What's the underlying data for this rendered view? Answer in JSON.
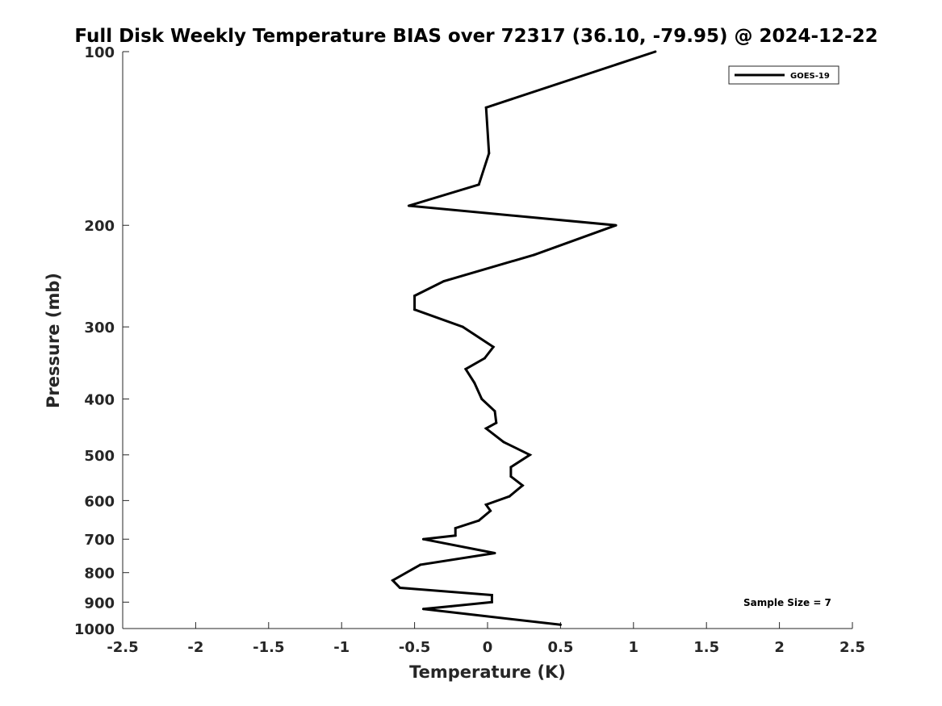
{
  "chart_data": {
    "type": "line",
    "title": "Full Disk Weekly Temperature BIAS over 72317 (36.10, -79.95) @ 2024-12-22",
    "xlabel": "Temperature (K)",
    "ylabel": "Pressure (mb)",
    "xlim": [
      -2.5,
      2.5
    ],
    "ylim": [
      1000,
      100
    ],
    "yscale": "log",
    "y_reversed": true,
    "grid": false,
    "legend_position": "top-right",
    "x_ticks": [
      -2.5,
      -2,
      -1.5,
      -1,
      -0.5,
      0,
      0.5,
      1,
      1.5,
      2,
      2.5
    ],
    "x_tick_labels": [
      "-2.5",
      "-2",
      "-1.5",
      "-1",
      "-0.5",
      "0",
      "0.5",
      "1",
      "1.5",
      "2",
      "2.5"
    ],
    "y_ticks": [
      100,
      200,
      300,
      400,
      500,
      600,
      700,
      800,
      900,
      1000
    ],
    "y_tick_labels": [
      "100",
      "200",
      "300",
      "400",
      "500",
      "600",
      "700",
      "800",
      "900",
      "1000"
    ],
    "series": [
      {
        "name": "GOES-19",
        "color": "#000000",
        "points": [
          {
            "x": 1.15,
            "y": 100
          },
          {
            "x": -0.01,
            "y": 125
          },
          {
            "x": 0.01,
            "y": 150
          },
          {
            "x": -0.06,
            "y": 170
          },
          {
            "x": -0.54,
            "y": 185
          },
          {
            "x": 0.88,
            "y": 200
          },
          {
            "x": 0.32,
            "y": 225
          },
          {
            "x": -0.3,
            "y": 250
          },
          {
            "x": -0.5,
            "y": 265
          },
          {
            "x": -0.5,
            "y": 280
          },
          {
            "x": -0.17,
            "y": 300
          },
          {
            "x": 0.04,
            "y": 325
          },
          {
            "x": -0.02,
            "y": 340
          },
          {
            "x": -0.15,
            "y": 355
          },
          {
            "x": -0.09,
            "y": 375
          },
          {
            "x": -0.04,
            "y": 400
          },
          {
            "x": 0.05,
            "y": 420
          },
          {
            "x": 0.06,
            "y": 440
          },
          {
            "x": -0.01,
            "y": 450
          },
          {
            "x": 0.11,
            "y": 475
          },
          {
            "x": 0.29,
            "y": 500
          },
          {
            "x": 0.16,
            "y": 525
          },
          {
            "x": 0.16,
            "y": 545
          },
          {
            "x": 0.24,
            "y": 565
          },
          {
            "x": 0.15,
            "y": 590
          },
          {
            "x": -0.01,
            "y": 610
          },
          {
            "x": 0.02,
            "y": 625
          },
          {
            "x": -0.06,
            "y": 650
          },
          {
            "x": -0.22,
            "y": 670
          },
          {
            "x": -0.22,
            "y": 690
          },
          {
            "x": -0.44,
            "y": 700
          },
          {
            "x": 0.05,
            "y": 740
          },
          {
            "x": -0.46,
            "y": 775
          },
          {
            "x": -0.65,
            "y": 825
          },
          {
            "x": -0.6,
            "y": 850
          },
          {
            "x": 0.03,
            "y": 875
          },
          {
            "x": 0.03,
            "y": 900
          },
          {
            "x": -0.25,
            "y": 915
          },
          {
            "x": -0.44,
            "y": 925
          },
          {
            "x": 0.5,
            "y": 985
          }
        ]
      }
    ],
    "legend": [
      {
        "label": "GOES-19",
        "color": "#000000"
      }
    ],
    "annotations": [
      {
        "text": "Sample Size = 7"
      }
    ]
  }
}
